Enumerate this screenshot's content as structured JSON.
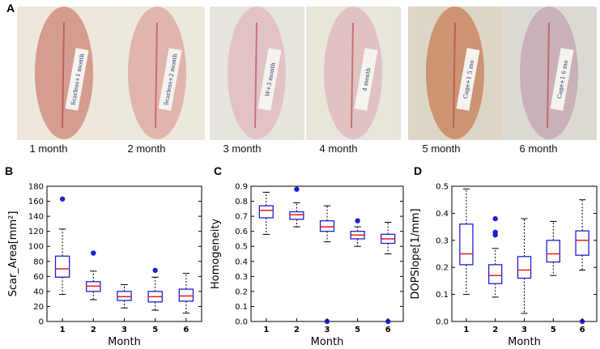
{
  "figure": {
    "panel_labels": [
      "A",
      "B",
      "C",
      "D"
    ],
    "photos": [
      {
        "caption": "1 month",
        "tag": "Scarless+1 month",
        "skin": "#d59d8f",
        "fur": "#ede7dc"
      },
      {
        "caption": "2 month",
        "tag": "Scarless+2 month",
        "skin": "#dfb5ad",
        "fur": "#ece8de"
      },
      {
        "caption": "3 month",
        "tag": "W+3 month",
        "skin": "#e1c3c6",
        "fur": "#e6e4dc"
      },
      {
        "caption": "4 month",
        "tag": "4 month",
        "skin": "#e0c2c2",
        "fur": "#e9e5db"
      },
      {
        "caption": "5 month",
        "tag": "Cage+1 5 mo",
        "skin": "#cc9472",
        "fur": "#ddd6c6"
      },
      {
        "caption": "6 month",
        "tag": "Cage+1 6 mo",
        "skin": "#cab0b8",
        "fur": "#dcd9d2"
      }
    ]
  },
  "chart_data": [
    {
      "type": "box",
      "panel": "B",
      "xlabel": "Month",
      "ylabel": "Scar_Area[mm²]",
      "ylim": [
        0,
        180
      ],
      "yticks": [
        0,
        20,
        40,
        60,
        80,
        100,
        120,
        140,
        160,
        180
      ],
      "categories": [
        "1",
        "2",
        "3",
        "5",
        "6"
      ],
      "boxes": [
        {
          "q1": 59,
          "median": 70,
          "q3": 87,
          "whisker_low": 36,
          "whisker_high": 123,
          "outliers": [
            163
          ]
        },
        {
          "q1": 40,
          "median": 47,
          "q3": 53,
          "whisker_low": 29,
          "whisker_high": 67,
          "outliers": [
            91
          ]
        },
        {
          "q1": 28,
          "median": 33,
          "q3": 40,
          "whisker_low": 18,
          "whisker_high": 49,
          "outliers": []
        },
        {
          "q1": 26,
          "median": 33,
          "q3": 40,
          "whisker_low": 15,
          "whisker_high": 59,
          "outliers": [
            68
          ]
        },
        {
          "q1": 27,
          "median": 34,
          "q3": 43,
          "whisker_low": 11,
          "whisker_high": 64,
          "outliers": []
        }
      ]
    },
    {
      "type": "box",
      "panel": "C",
      "xlabel": "Month",
      "ylabel": "Homogeneity",
      "ylim": [
        0,
        0.9
      ],
      "yticks": [
        "0.0",
        "0.1",
        "0.2",
        "0.3",
        "0.4",
        "0.5",
        "0.6",
        "0.7",
        "0.8",
        "0.9"
      ],
      "categories": [
        "1",
        "2",
        "3",
        "5",
        "6"
      ],
      "boxes": [
        {
          "q1": 0.69,
          "median": 0.74,
          "q3": 0.77,
          "whisker_low": 0.58,
          "whisker_high": 0.86,
          "outliers": []
        },
        {
          "q1": 0.68,
          "median": 0.71,
          "q3": 0.73,
          "whisker_low": 0.63,
          "whisker_high": 0.79,
          "outliers": [
            0.88
          ]
        },
        {
          "q1": 0.6,
          "median": 0.63,
          "q3": 0.67,
          "whisker_low": 0.53,
          "whisker_high": 0.77,
          "outliers": [
            0.0
          ]
        },
        {
          "q1": 0.55,
          "median": 0.575,
          "q3": 0.6,
          "whisker_low": 0.5,
          "whisker_high": 0.63,
          "outliers": [
            0.67
          ]
        },
        {
          "q1": 0.52,
          "median": 0.55,
          "q3": 0.58,
          "whisker_low": 0.45,
          "whisker_high": 0.66,
          "outliers": [
            0.0
          ]
        }
      ]
    },
    {
      "type": "box",
      "panel": "D",
      "xlabel": "Month",
      "ylabel": "DOPSlope[1/mm]",
      "ylim": [
        0,
        0.5
      ],
      "yticks": [
        "0.0",
        "0.1",
        "0.2",
        "0.3",
        "0.4",
        "0.5"
      ],
      "categories": [
        "1",
        "2",
        "3",
        "5",
        "6"
      ],
      "boxes": [
        {
          "q1": 0.21,
          "median": 0.25,
          "q3": 0.36,
          "whisker_low": 0.1,
          "whisker_high": 0.49,
          "outliers": []
        },
        {
          "q1": 0.14,
          "median": 0.17,
          "q3": 0.21,
          "whisker_low": 0.09,
          "whisker_high": 0.27,
          "outliers": [
            0.32,
            0.33,
            0.38
          ]
        },
        {
          "q1": 0.16,
          "median": 0.19,
          "q3": 0.24,
          "whisker_low": 0.03,
          "whisker_high": 0.38,
          "outliers": []
        },
        {
          "q1": 0.22,
          "median": 0.25,
          "q3": 0.3,
          "whisker_low": 0.17,
          "whisker_high": 0.37,
          "outliers": []
        },
        {
          "q1": 0.245,
          "median": 0.3,
          "q3": 0.335,
          "whisker_low": 0.19,
          "whisker_high": 0.45,
          "outliers": [
            0.0
          ]
        }
      ]
    }
  ],
  "colors": {
    "box": "#1f1fd6",
    "median": "#e51c1c",
    "outlier": "#1f1fd6",
    "axis": "#000000"
  }
}
